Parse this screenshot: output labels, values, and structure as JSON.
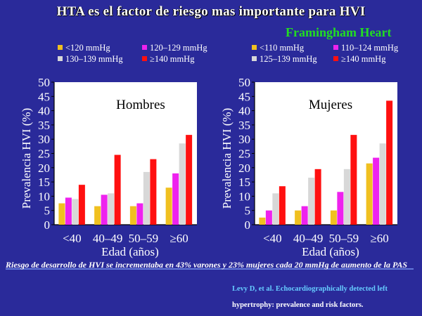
{
  "title": "HTA es el factor de riesgo mas importante para HVI",
  "study": "Framingham Heart",
  "footnote": "Riesgo de desarrollo de HVI se incrementaba en 43% varones y 23% mujeres cada 20 mmHg de aumento de la PAS",
  "reference_line1": "Levy D, et al. Echocardiographically detected left",
  "reference_line2": "hypertrophy: prevalence and risk factors.",
  "chart_data": [
    {
      "type": "bar",
      "title": "Hombres",
      "xlabel": "Edad (años)",
      "ylabel": "Prevalencia HVI (%)",
      "ylim": [
        0,
        50
      ],
      "yticks": [
        0,
        5,
        10,
        15,
        20,
        25,
        30,
        35,
        40,
        45,
        50
      ],
      "categories": [
        "<40",
        "40–49",
        "50–59",
        "≥60"
      ],
      "legend_placement": "top",
      "series": [
        {
          "name": "<120 mmHg",
          "color": "#f0c020",
          "values": [
            7.5,
            6.5,
            6.5,
            13
          ]
        },
        {
          "name": "120–129 mmHg",
          "color": "#ee22ee",
          "values": [
            9.5,
            10.5,
            7.5,
            18
          ]
        },
        {
          "name": "130–139 mmHg",
          "color": "#d8d8d8",
          "values": [
            9,
            11,
            18.5,
            28.5
          ]
        },
        {
          "name": "≥140 mmHg",
          "color": "#ff1010",
          "values": [
            14,
            24.5,
            23,
            31.5
          ]
        }
      ]
    },
    {
      "type": "bar",
      "title": "Mujeres",
      "xlabel": "Edad (años)",
      "ylabel": "Prevalencia HVI (%)",
      "ylim": [
        0,
        50
      ],
      "yticks": [
        0,
        5,
        10,
        15,
        20,
        25,
        30,
        35,
        40,
        45,
        50
      ],
      "categories": [
        "<40",
        "40–49",
        "50–59",
        "≥60"
      ],
      "legend_placement": "top",
      "series": [
        {
          "name": "<110 mmHg",
          "color": "#f0c020",
          "values": [
            2.5,
            5,
            5,
            21.5
          ]
        },
        {
          "name": "110–124 mmHg",
          "color": "#ee22ee",
          "values": [
            5,
            6.5,
            11.5,
            23.5
          ]
        },
        {
          "name": "125–139 mmHg",
          "color": "#d8d8d8",
          "values": [
            11,
            16.5,
            19.5,
            28.5
          ]
        },
        {
          "name": "≥140 mmHg",
          "color": "#ff1010",
          "values": [
            13.5,
            19.5,
            31.5,
            43.5
          ]
        }
      ]
    }
  ]
}
